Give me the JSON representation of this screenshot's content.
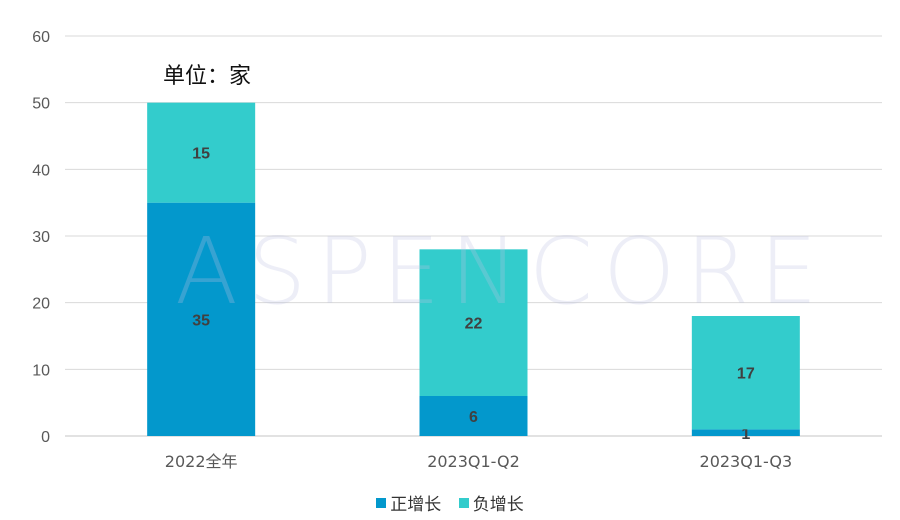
{
  "unit_label": "单位：家",
  "watermark": "ASPENCORE",
  "colors": {
    "positive": "#0398cc",
    "negative": "#33cccc",
    "grid": "#d9d9d9",
    "text": "#595959"
  },
  "chart_data": {
    "type": "bar",
    "stacked": true,
    "categories": [
      "2022全年",
      "2023Q1-Q2",
      "2023Q1-Q3"
    ],
    "series": [
      {
        "name": "正增长",
        "values": [
          35,
          6,
          1
        ]
      },
      {
        "name": "负增长",
        "values": [
          15,
          22,
          17
        ]
      }
    ],
    "ylim": [
      0,
      60
    ],
    "yticks": [
      0,
      10,
      20,
      30,
      40,
      50,
      60
    ],
    "grid": true,
    "legend_position": "bottom"
  }
}
